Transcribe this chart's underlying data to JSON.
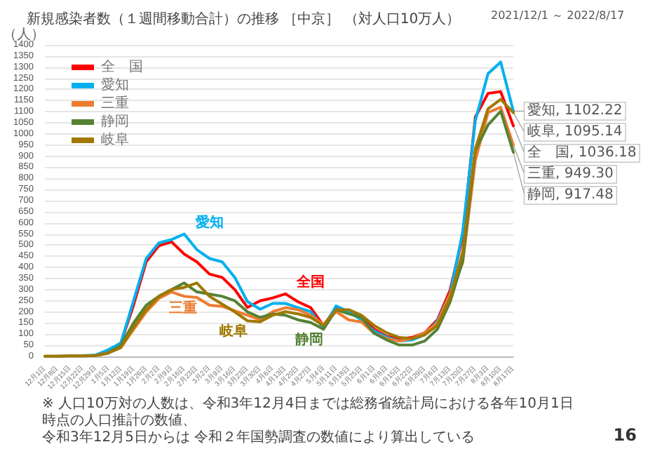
{
  "chart_data": {
    "type": "line",
    "title": "新規感染者数（１週間移動合計）の推移 ［中京］ （対人口10万人）",
    "subtitle": "2021/12/1 ～ 2022/8/17",
    "ylabel": "（人）",
    "categories": [
      "12月1日",
      "12月8日",
      "12月15日",
      "12月22日",
      "12月29日",
      "1月5日",
      "1月12日",
      "1月19日",
      "1月26日",
      "2月2日",
      "2月9日",
      "2月16日",
      "2月23日",
      "3月2日",
      "3月9日",
      "3月16日",
      "3月23日",
      "3月30日",
      "4月6日",
      "4月13日",
      "4月20日",
      "4月27日",
      "5月4日",
      "5月11日",
      "5月18日",
      "5月25日",
      "6月1日",
      "6月8日",
      "6月15日",
      "6月22日",
      "6月29日",
      "7月6日",
      "7月13日",
      "7月20日",
      "7月27日",
      "8月3日",
      "8月10日",
      "8月17日"
    ],
    "series": [
      {
        "name": "全　国",
        "color": "#ff0000",
        "values": [
          null,
          null,
          null,
          null,
          null,
          25,
          60,
          230,
          425,
          497,
          515,
          460,
          425,
          370,
          355,
          300,
          220,
          250,
          263,
          281,
          245,
          219,
          138,
          218,
          201,
          175,
          122,
          90,
          80,
          85,
          106,
          164,
          297,
          540,
          1076,
          1182,
          1190,
          1036.18
        ]
      },
      {
        "name": "愛知",
        "color": "#00b0f0",
        "values": [
          null,
          null,
          null,
          3,
          6,
          30,
          60,
          250,
          440,
          510,
          525,
          550,
          480,
          440,
          425,
          355,
          246,
          212,
          238,
          238,
          219,
          201,
          127,
          227,
          201,
          164,
          114,
          86,
          69,
          74,
          97,
          159,
          280,
          560,
          1060,
          1271,
          1323,
          1102.22
        ]
      },
      {
        "name": "三重",
        "color": "#ed7d31",
        "values": [
          null,
          null,
          null,
          null,
          4,
          15,
          40,
          120,
          200,
          260,
          290,
          270,
          265,
          230,
          225,
          205,
          185,
          164,
          201,
          219,
          210,
          185,
          143,
          201,
          164,
          155,
          104,
          80,
          69,
          80,
          106,
          150,
          280,
          420,
          882,
          1096,
          1120,
          949.3
        ]
      },
      {
        "name": "静岡",
        "color": "#548235",
        "values": [
          1,
          1,
          2,
          2,
          4,
          15,
          50,
          150,
          230,
          270,
          300,
          330,
          290,
          280,
          270,
          250,
          200,
          175,
          191,
          185,
          164,
          152,
          122,
          210,
          191,
          175,
          104,
          74,
          51,
          51,
          69,
          122,
          244,
          430,
          925,
          1040,
          1102,
          917.48
        ]
      },
      {
        "name": "岐阜",
        "color": "#a07800",
        "values": [
          1,
          1,
          2,
          2,
          4,
          15,
          40,
          130,
          210,
          270,
          300,
          310,
          330,
          270,
          235,
          200,
          160,
          155,
          185,
          201,
          191,
          175,
          139,
          210,
          210,
          185,
          139,
          106,
          85,
          80,
          97,
          139,
          262,
          470,
          933,
          1113,
          1155,
          1095.14
        ]
      }
    ],
    "ylim": [
      0,
      1400
    ],
    "yticks": [
      0,
      50,
      100,
      150,
      200,
      250,
      300,
      350,
      400,
      450,
      500,
      550,
      600,
      650,
      700,
      750,
      800,
      850,
      900,
      950,
      1000,
      1050,
      1100,
      1150,
      1200,
      1250,
      1300,
      1350,
      1400
    ],
    "grid": "y",
    "legend": "top left",
    "marker": "none",
    "line_style": "solid",
    "annotations": [
      {
        "text": "愛知",
        "x": "2月16日",
        "y": 550
      },
      {
        "text": "全国",
        "x": "4月13日",
        "y": 281
      },
      {
        "text": "三重",
        "x": "2月23日",
        "y": 265
      },
      {
        "text": "岐阜",
        "x": "3月23日",
        "y": 160
      },
      {
        "text": "静岡",
        "x": "5月4日",
        "y": 122
      },
      {
        "text": "愛知, 1102.22",
        "x": "8月17日",
        "y": 1102.22
      },
      {
        "text": "岐阜, 1095.14",
        "x": "8月17日",
        "y": 1095.14
      },
      {
        "text": "全　国, 1036.18",
        "x": "8月17日",
        "y": 1036.18
      },
      {
        "text": "三重, 949.30",
        "x": "8月17日",
        "y": 949.3
      },
      {
        "text": "静岡, 917.48",
        "x": "8月17日",
        "y": 917.48
      },
      "※ 人口10万対の人数は、令和3年12月4日までは総務省統計局における各年10月1日時点の人口推計の数値、",
      "令和3年12月5日からは 令和２年国勢調査の数値により算出している",
      "16"
    ]
  }
}
